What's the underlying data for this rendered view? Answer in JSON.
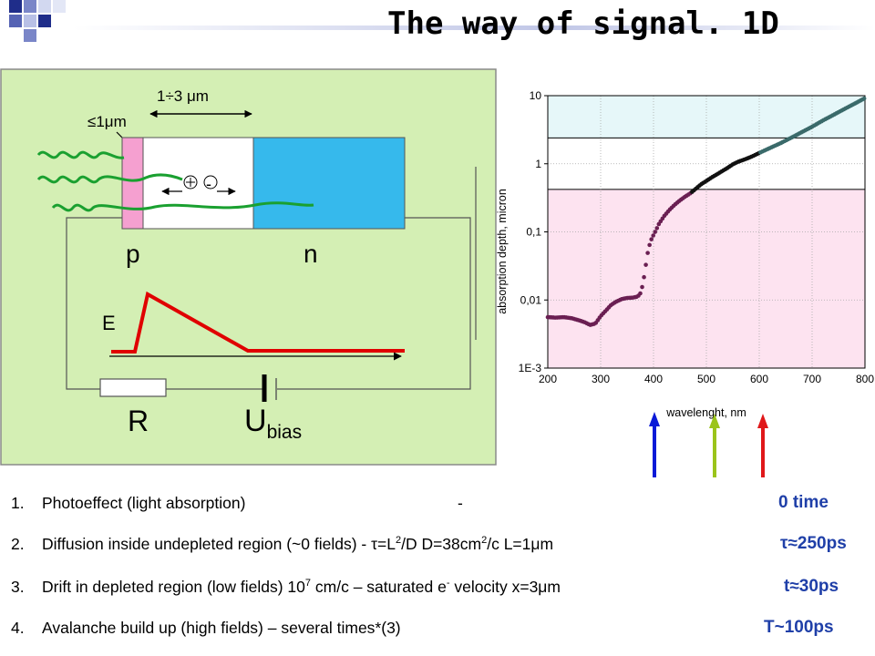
{
  "title": "The way of signal. 1D",
  "diagram": {
    "dim_top": "1÷3 μm",
    "dim_small": "≤1μm",
    "label_p": "p",
    "label_n": "n",
    "label_E": "E",
    "label_R": "R",
    "label_U": "U",
    "label_U_sub": "bias",
    "plus": "+",
    "minus": "-",
    "colors": {
      "panel": "#d4efb4",
      "p_region": "#f5a0d0",
      "n_region": "#36b9ec",
      "field": "#e00000",
      "photon": "#1aa030"
    }
  },
  "chart_data": {
    "type": "scatter",
    "xlabel": "wavelenght, nm",
    "ylabel": "absorption depth, micron",
    "xlim": [
      200,
      800
    ],
    "ylim": [
      0.001,
      10
    ],
    "yscale": "log",
    "x_ticks": [
      "200",
      "300",
      "400",
      "500",
      "600",
      "700",
      "800"
    ],
    "y_ticks": [
      "1E-3",
      "0,01",
      "0,1",
      "1",
      "10"
    ],
    "grid": true,
    "x": [
      200,
      215,
      230,
      245,
      260,
      270,
      280,
      290,
      300,
      310,
      320,
      330,
      340,
      350,
      360,
      370,
      375,
      380,
      385,
      390,
      395,
      400,
      405,
      410,
      420,
      430,
      440,
      450,
      460,
      470,
      480,
      490,
      500,
      510,
      520,
      530,
      540,
      550,
      560,
      570,
      580,
      590,
      600,
      620,
      640,
      660,
      680,
      700,
      720,
      740,
      760,
      780,
      800
    ],
    "y": [
      0.0056,
      0.0055,
      0.0056,
      0.0054,
      0.005,
      0.0047,
      0.0043,
      0.0045,
      0.0058,
      0.007,
      0.0085,
      0.0095,
      0.0103,
      0.0107,
      0.0108,
      0.0112,
      0.0125,
      0.017,
      0.031,
      0.055,
      0.075,
      0.09,
      0.107,
      0.13,
      0.17,
      0.21,
      0.25,
      0.29,
      0.33,
      0.37,
      0.43,
      0.5,
      0.56,
      0.63,
      0.7,
      0.78,
      0.87,
      0.98,
      1.07,
      1.14,
      1.22,
      1.32,
      1.44,
      1.7,
      2.0,
      2.4,
      2.9,
      3.5,
      4.3,
      5.2,
      6.3,
      7.6,
      9.2
    ]
  },
  "arrows": {
    "colors": [
      "#0a1ad8",
      "#9bc41b",
      "#e0181a"
    ]
  },
  "list": [
    {
      "num": "1.",
      "text": "Photoeffect (light absorption)",
      "sep": "-",
      "result": "0 time"
    },
    {
      "num": "2.",
      "text_a": "Diffusion inside undepleted region (~0 fields) - τ=L",
      "sup_a": "2",
      "text_b": "/D   D=38cm",
      "sup_b": "2",
      "text_c": "/c   L=1μm",
      "result": "τ≈250ps"
    },
    {
      "num": "3.",
      "text_a": "Drift in depleted region (low fields) 10",
      "sup_a": "7",
      "text_b": " cm/c – saturated e",
      "sup_b": "-",
      "text_c": " velocity  x=3μm",
      "result": "t≈30ps"
    },
    {
      "num": "4.",
      "text": "Avalanche build up (high fields) –   several times*(3)",
      "result": "T~100ps"
    }
  ]
}
